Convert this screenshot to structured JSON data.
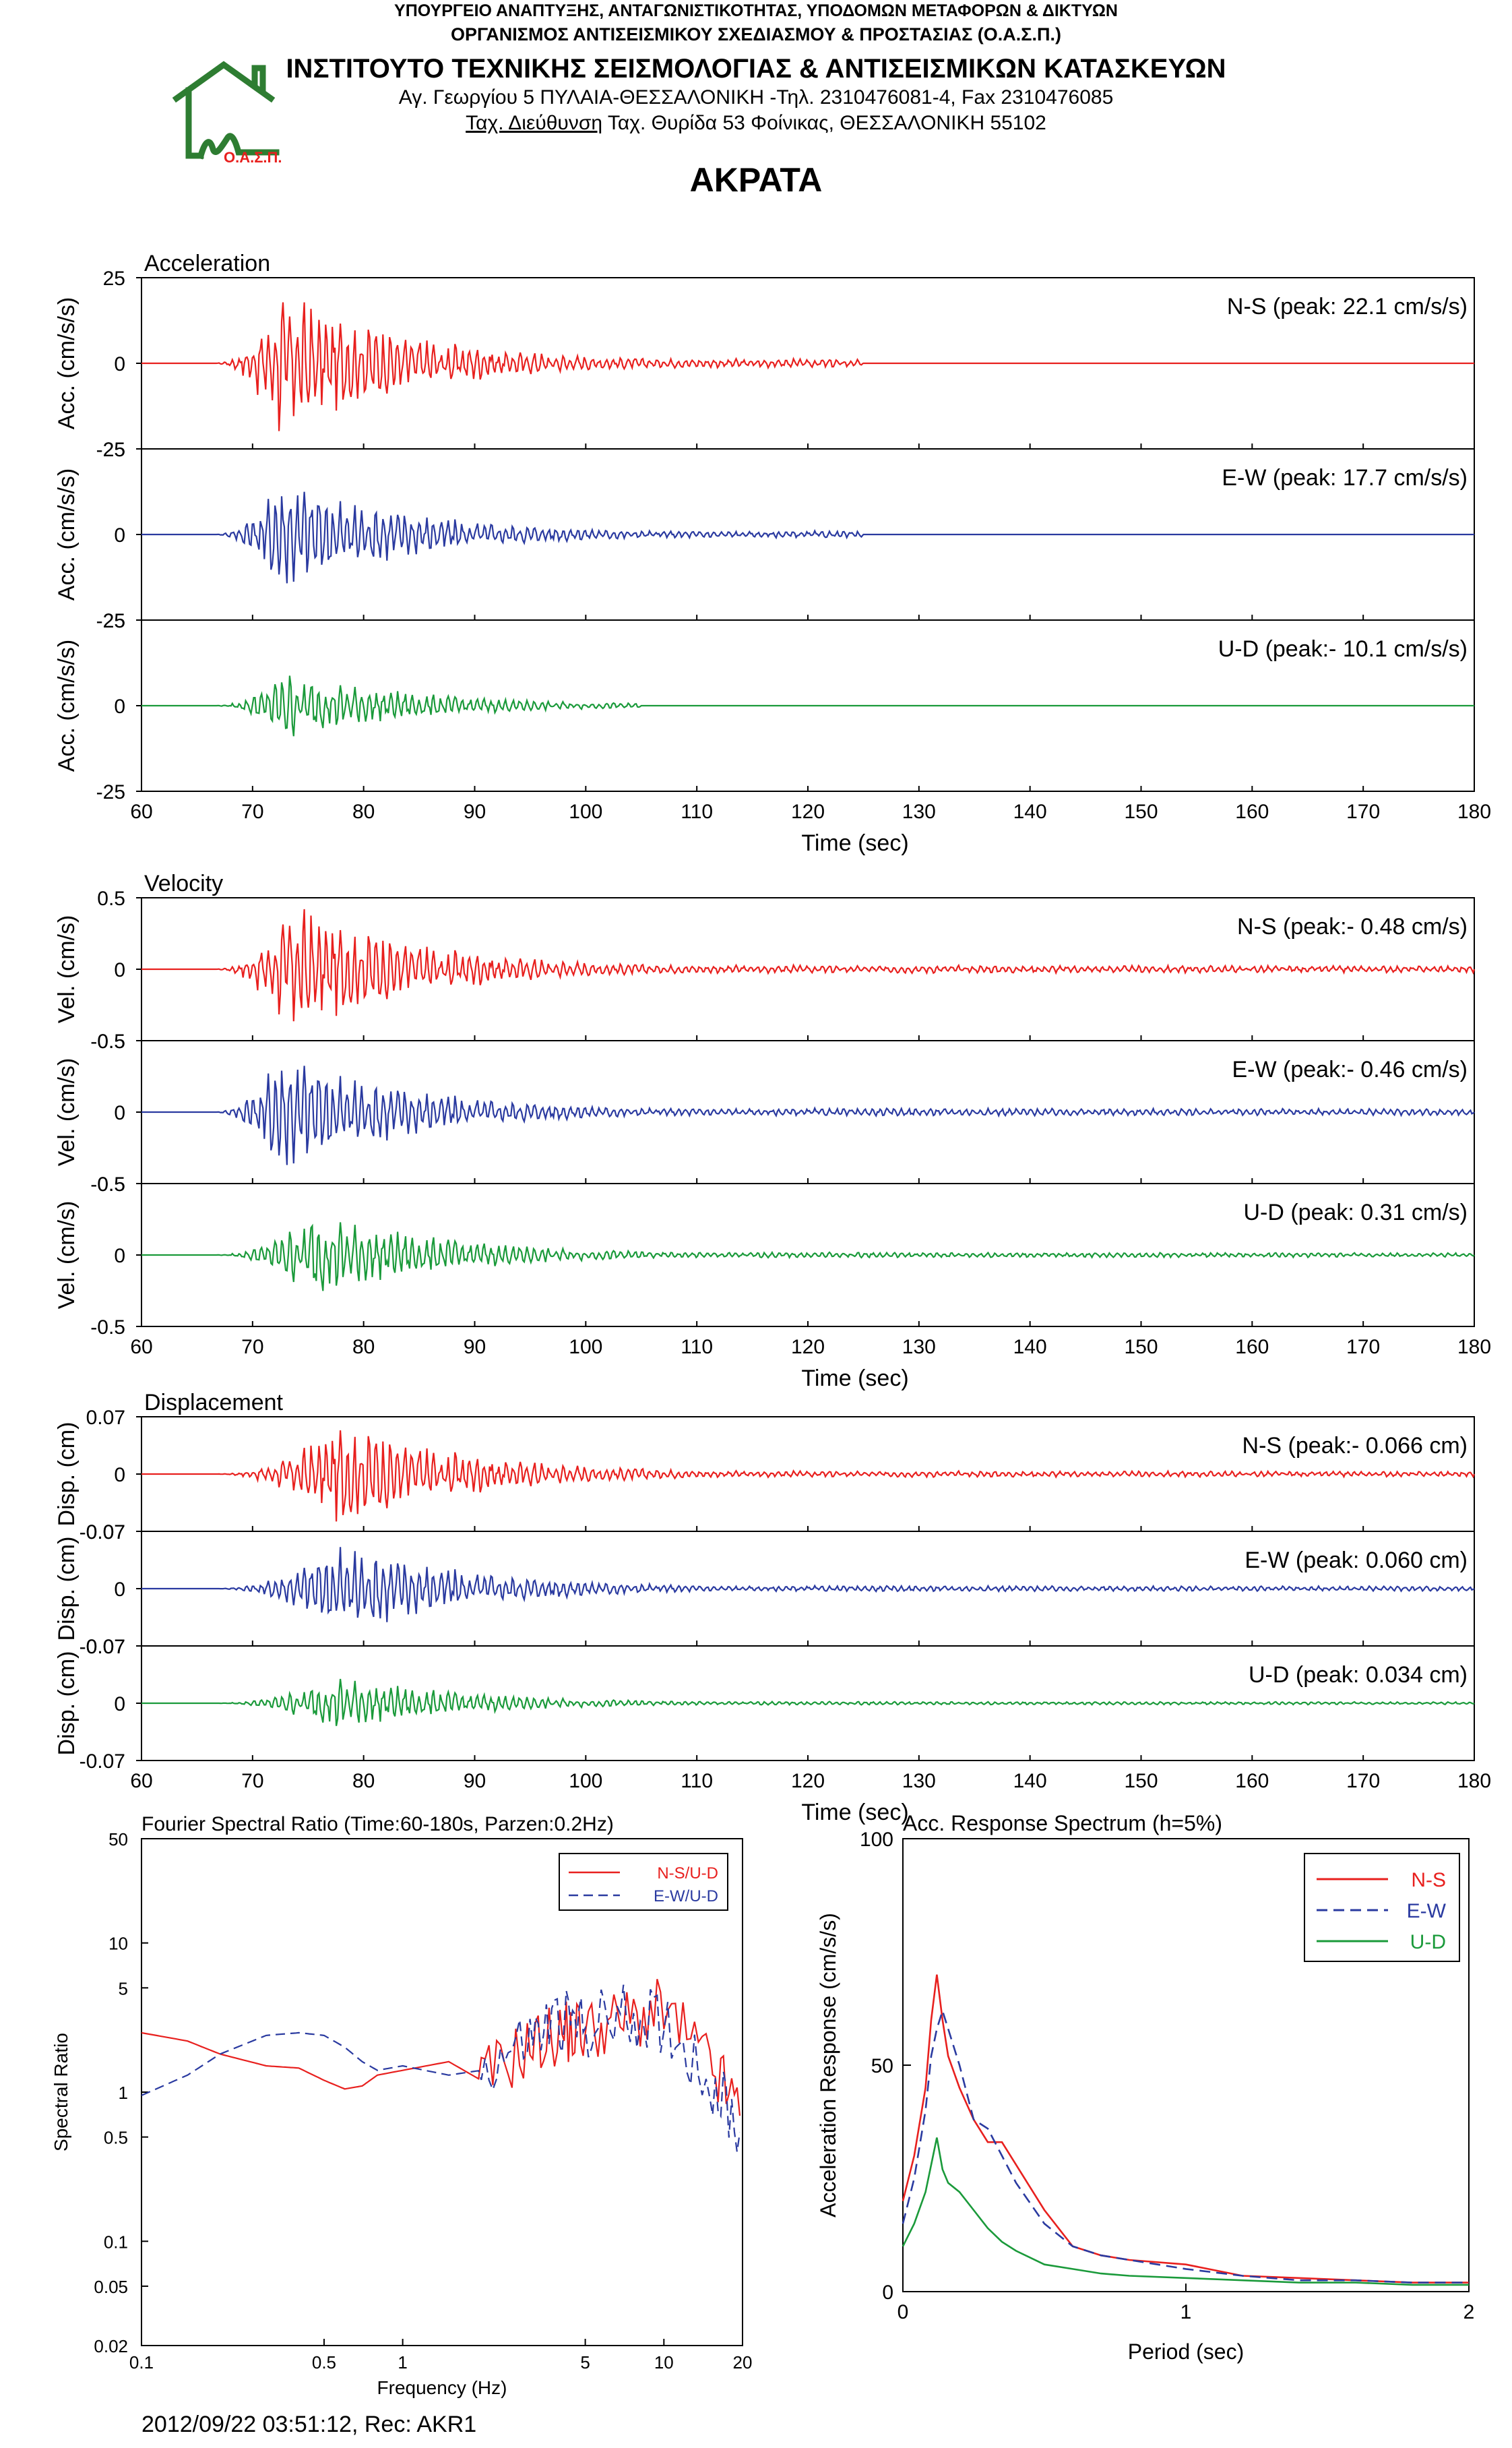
{
  "header": {
    "ministry": "ΥΠΟΥΡΓΕΙΟ ΑΝΑΠΤΥΞΗΣ, ΑΝΤΑΓΩΝΙΣΤΙΚΟΤΗΤΑΣ, ΥΠΟΔΟΜΩΝ ΜΕΤΑΦΟΡΩΝ & ΔΙΚΤΥΩΝ",
    "organization": "ΟΡΓΑΝΙΣΜΟΣ ΑΝΤΙΣΕΙΣΜΙΚΟΥ ΣΧΕΔΙΑΣΜΟΥ & ΠΡΟΣΤΑΣΙΑΣ (Ο.Α.Σ.Π.)",
    "institute": "ΙΝΣΤΙΤΟΥΤΟ ΤΕΧΝΙΚΗΣ ΣΕΙΣΜΟΛΟΓΙΑΣ & ΑΝΤΙΣΕΙΣΜΙΚΩΝ ΚΑΤΑΣΚΕΥΩΝ",
    "address": "Αγ. Γεωργίου 5 ΠΥΛΑΙΑ-ΘΕΣΣΑΛΟΝΙΚΗ -Τηλ. 2310476081-4,  Fax 2310476085",
    "postal_label": "Ταχ. Διεύθυνση",
    "postal": " Ταχ. Θυρίδα 53 Φοίνικας, ΘΕΣΣΑΛΟΝΙΚΗ 55102",
    "logo_text": "Ο.Α.Σ.Π."
  },
  "station_title": "ΑΚΡΑΤΑ",
  "footer": "2012/09/22 03:51:12, Rec: AKR1",
  "colors": {
    "ns": "#e8201e",
    "ew": "#2a3aa0",
    "ud": "#1a9a3a",
    "logo": "#2e7d32",
    "logo_text": "#e8201e"
  },
  "chart_data": [
    {
      "type": "line",
      "title": "Acceleration",
      "xlabel": "Time (sec)",
      "ylabel": "Acc. (cm/s/s)",
      "xlim": [
        60,
        180
      ],
      "x_ticks": [
        60,
        70,
        80,
        90,
        100,
        110,
        120,
        130,
        140,
        150,
        160,
        170,
        180
      ],
      "ylim": [
        -25,
        25
      ],
      "y_ticks": [
        25,
        0,
        -25
      ],
      "series": [
        {
          "name": "N-S",
          "label": "N-S (peak: 22.1 cm/s/s)",
          "peak": 22.1,
          "peak_time": 72.5,
          "start": 66.5,
          "end": 125,
          "color": "#e8201e"
        },
        {
          "name": "E-W",
          "label": "E-W (peak: 17.7 cm/s/s)",
          "peak": 17.7,
          "peak_time": 72.5,
          "start": 66.5,
          "end": 125,
          "color": "#2a3aa0"
        },
        {
          "name": "U-D",
          "label": "U-D (peak:- 10.1 cm/s/s)",
          "peak": -10.1,
          "peak_time": 72.8,
          "start": 66.5,
          "end": 105,
          "color": "#1a9a3a"
        }
      ]
    },
    {
      "type": "line",
      "title": "Velocity",
      "xlabel": "Time (sec)",
      "ylabel": "Vel. (cm/s)",
      "xlim": [
        60,
        180
      ],
      "x_ticks": [
        60,
        70,
        80,
        90,
        100,
        110,
        120,
        130,
        140,
        150,
        160,
        170,
        180
      ],
      "ylim": [
        -0.5,
        0.5
      ],
      "y_ticks": [
        0.5,
        0,
        -0.5
      ],
      "series": [
        {
          "name": "N-S",
          "label": "N-S (peak:- 0.48 cm/s)",
          "peak": -0.48,
          "peak_time": 73.5,
          "start": 66.5,
          "end": 180,
          "color": "#e8201e"
        },
        {
          "name": "E-W",
          "label": "E-W (peak:- 0.46 cm/s)",
          "peak": -0.46,
          "peak_time": 72.5,
          "start": 66.5,
          "end": 180,
          "color": "#2a3aa0"
        },
        {
          "name": "U-D",
          "label": "U-D (peak: 0.31 cm/s)",
          "peak": 0.31,
          "peak_time": 75.5,
          "start": 66.5,
          "end": 180,
          "color": "#1a9a3a"
        }
      ]
    },
    {
      "type": "line",
      "title": "Displacement",
      "xlabel": "Time (sec)",
      "ylabel": "Disp. (cm)",
      "xlim": [
        60,
        180
      ],
      "x_ticks": [
        60,
        70,
        80,
        90,
        100,
        110,
        120,
        130,
        140,
        150,
        160,
        170,
        180
      ],
      "ylim": [
        -0.07,
        0.07
      ],
      "y_ticks": [
        0.07,
        0,
        -0.07
      ],
      "series": [
        {
          "name": "N-S",
          "label": "N-S (peak:- 0.066 cm)",
          "peak": -0.066,
          "peak_time": 78.0,
          "start": 66.5,
          "end": 180,
          "color": "#e8201e"
        },
        {
          "name": "E-W",
          "label": "E-W (peak: 0.060 cm)",
          "peak": 0.06,
          "peak_time": 78.0,
          "start": 66.5,
          "end": 180,
          "color": "#2a3aa0"
        },
        {
          "name": "U-D",
          "label": "U-D (peak: 0.034 cm)",
          "peak": 0.034,
          "peak_time": 77.5,
          "start": 66.5,
          "end": 180,
          "color": "#1a9a3a"
        }
      ]
    },
    {
      "type": "line",
      "title": "Fourier Spectral Ratio (Time:60-180s, Parzen:0.2Hz)",
      "xlabel": "Frequency (Hz)",
      "ylabel": "Spectral Ratio",
      "x_scale": "log",
      "y_scale": "log",
      "xlim": [
        0.1,
        20
      ],
      "ylim": [
        0.02,
        50
      ],
      "x_ticks": [
        0.1,
        0.5,
        1,
        5,
        10,
        20
      ],
      "y_ticks": [
        0.02,
        0.05,
        0.1,
        0.5,
        1,
        5,
        10,
        50
      ],
      "legend": "top-right",
      "series": [
        {
          "name": "N-S/U-D",
          "style": "solid",
          "color": "#e8201e",
          "x": [
            0.1,
            0.15,
            0.2,
            0.3,
            0.4,
            0.5,
            0.6,
            0.7,
            0.8,
            1.0,
            1.5,
            2.0,
            3.0,
            4.0,
            5.0,
            7.0,
            10.0,
            15.0,
            20.0
          ],
          "y": [
            2.5,
            2.2,
            1.8,
            1.5,
            1.45,
            1.2,
            1.05,
            1.1,
            1.3,
            1.4,
            1.6,
            1.2,
            2.0,
            2.5,
            2.6,
            3.0,
            3.5,
            1.5,
            0.7
          ]
        },
        {
          "name": "E-W/U-D",
          "style": "dashed",
          "color": "#2a3aa0",
          "x": [
            0.1,
            0.15,
            0.2,
            0.3,
            0.4,
            0.5,
            0.6,
            0.7,
            0.8,
            1.0,
            1.5,
            2.0,
            3.0,
            4.0,
            5.0,
            7.0,
            10.0,
            15.0,
            20.0
          ],
          "y": [
            0.95,
            1.3,
            1.8,
            2.4,
            2.5,
            2.4,
            2.0,
            1.6,
            1.4,
            1.5,
            1.3,
            1.4,
            2.2,
            3.0,
            2.8,
            3.2,
            3.0,
            1.2,
            0.5
          ]
        }
      ]
    },
    {
      "type": "line",
      "title": "Acc. Response Spectrum (h=5%)",
      "xlabel": "Period (sec)",
      "ylabel": "Acceleration Response (cm/s/s)",
      "xlim": [
        0,
        2
      ],
      "ylim": [
        0,
        100
      ],
      "x_ticks": [
        0,
        1,
        2
      ],
      "y_ticks": [
        0,
        50,
        100
      ],
      "legend": "top-right",
      "series": [
        {
          "name": "N-S",
          "style": "solid",
          "color": "#e8201e",
          "x": [
            0,
            0.04,
            0.08,
            0.1,
            0.12,
            0.14,
            0.16,
            0.2,
            0.25,
            0.3,
            0.35,
            0.4,
            0.5,
            0.6,
            0.7,
            0.8,
            1.0,
            1.2,
            1.4,
            1.6,
            1.8,
            2.0
          ],
          "y": [
            20,
            30,
            45,
            60,
            70,
            60,
            52,
            45,
            38,
            33,
            33,
            28,
            18,
            10,
            8,
            7,
            6,
            3.5,
            3,
            2.5,
            2,
            2
          ]
        },
        {
          "name": "E-W",
          "style": "dashed",
          "color": "#2a3aa0",
          "x": [
            0,
            0.04,
            0.08,
            0.1,
            0.12,
            0.14,
            0.16,
            0.2,
            0.25,
            0.3,
            0.35,
            0.4,
            0.5,
            0.6,
            0.7,
            0.8,
            1.0,
            1.2,
            1.4,
            1.6,
            1.8,
            2.0
          ],
          "y": [
            15,
            25,
            40,
            52,
            58,
            62,
            58,
            50,
            38,
            36,
            30,
            24,
            15,
            10,
            8,
            7,
            5,
            3.5,
            2.5,
            2.5,
            2,
            2
          ]
        },
        {
          "name": "U-D",
          "style": "solid",
          "color": "#1a9a3a",
          "x": [
            0,
            0.04,
            0.08,
            0.1,
            0.12,
            0.14,
            0.16,
            0.2,
            0.25,
            0.3,
            0.35,
            0.4,
            0.5,
            0.6,
            0.7,
            0.8,
            1.0,
            1.2,
            1.4,
            1.6,
            1.8,
            2.0
          ],
          "y": [
            10,
            15,
            22,
            28,
            34,
            27,
            24,
            22,
            18,
            14,
            11,
            9,
            6,
            5,
            4,
            3.5,
            3,
            2.5,
            2,
            2,
            1.5,
            1.5
          ]
        }
      ]
    }
  ]
}
